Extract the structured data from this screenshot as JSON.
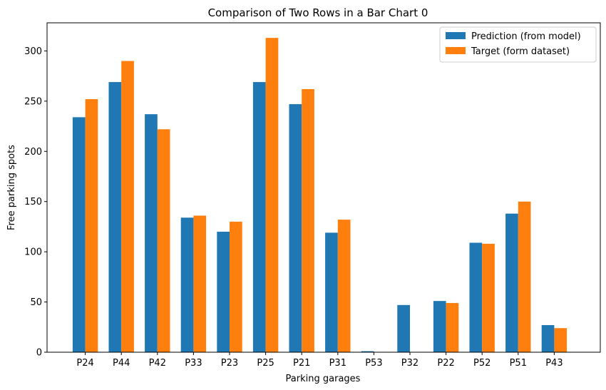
{
  "chart_data": {
    "type": "bar",
    "title": "Comparison of Two Rows in a Bar Chart 0",
    "xlabel": "Parking garages",
    "ylabel": "Free parking spots",
    "ylim": [
      0,
      328
    ],
    "yticks": [
      0,
      50,
      100,
      150,
      200,
      250,
      300
    ],
    "grid": false,
    "legend_position": "top-right",
    "categories": [
      "P24",
      "P44",
      "P42",
      "P33",
      "P23",
      "P25",
      "P21",
      "P31",
      "P53",
      "P32",
      "P22",
      "P52",
      "P51",
      "P43"
    ],
    "series": [
      {
        "name": "Prediction (from model)",
        "color": "#1f77b4",
        "values": [
          234,
          269,
          237,
          134,
          120,
          269,
          247,
          119,
          1,
          47,
          51,
          109,
          138,
          27
        ]
      },
      {
        "name": "Target (form dataset)",
        "color": "#ff7f0e",
        "values": [
          252,
          290,
          222,
          136,
          130,
          313,
          262,
          132,
          0,
          0,
          49,
          108,
          150,
          24
        ]
      }
    ]
  }
}
